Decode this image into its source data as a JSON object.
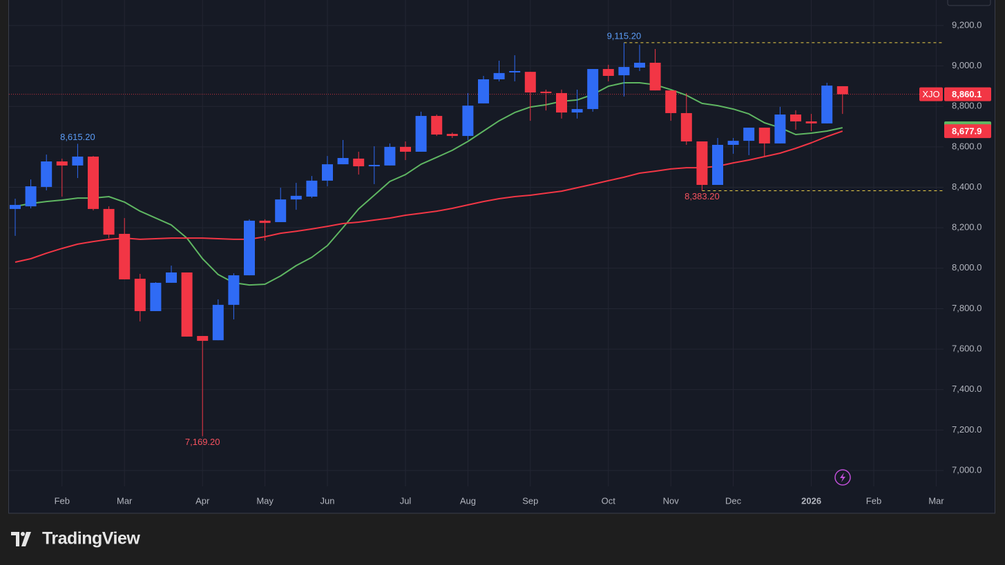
{
  "chart_data": {
    "type": "candlestick",
    "symbol": "XJO",
    "branding": "TradingView",
    "categories": [
      null,
      null,
      null,
      "Feb",
      null,
      null,
      null,
      "Mar",
      null,
      null,
      null,
      null,
      "Apr",
      null,
      null,
      null,
      "May",
      null,
      null,
      null,
      "Jun",
      null,
      null,
      null,
      null,
      "Jul",
      null,
      null,
      null,
      "Aug",
      null,
      null,
      null,
      "Sep",
      null,
      null,
      null,
      null,
      "Oct",
      null,
      null,
      null,
      "Nov",
      null,
      null,
      null,
      "Dec",
      null,
      null,
      null,
      null,
      "2026",
      null,
      null,
      null,
      "Feb",
      null,
      null,
      null,
      "Mar"
    ],
    "open": [
      8293,
      8306,
      8402,
      8528,
      8508,
      8552,
      8293,
      8170,
      7948,
      7788,
      7928,
      7979,
      7665,
      7644,
      7819,
      7965,
      8235,
      8228,
      8340,
      8354,
      8433,
      8514,
      8542,
      8504,
      8508,
      8600,
      8576,
      8753,
      8664,
      8654,
      8815,
      8934,
      8968,
      8971,
      8873,
      8866,
      8770,
      8787,
      8985,
      8954,
      8992,
      9016,
      8879,
      8767,
      8627,
      8412,
      8610,
      8630,
      8695,
      8617,
      8760,
      8726,
      8716,
      8900,
      null,
      null,
      null,
      null,
      null,
      null
    ],
    "high": [
      8344,
      8439,
      8562,
      8542,
      8615.2,
      8555,
      8306,
      8248,
      7972,
      7931,
      8013,
      7979,
      7665,
      7846,
      7975,
      8242,
      8242,
      8398,
      8422,
      8456,
      8555,
      8634,
      8576,
      8603,
      8617,
      8627,
      8774,
      8760,
      8671,
      8866,
      8951,
      9026,
      9053,
      8971,
      8883,
      8883,
      8883,
      8985,
      9006,
      9115.2,
      9105,
      9084,
      8879,
      8866,
      8627,
      8644,
      8644,
      8695,
      8695,
      8798,
      8781,
      8763,
      8917,
      8900,
      null,
      null,
      null,
      null,
      null,
      null
    ],
    "low": [
      8160,
      8296,
      8385,
      8354,
      8446,
      8286,
      8149,
      7945,
      7737,
      7788,
      7928,
      7662,
      7169.2,
      7644,
      7747,
      7965,
      8136,
      8228,
      8289,
      8347,
      8405,
      8514,
      8463,
      8416,
      8508,
      8535,
      8576,
      8654,
      8644,
      8634,
      8815,
      8924,
      8924,
      8729,
      8780,
      8740,
      8740,
      8774,
      8924,
      8849,
      8975,
      8879,
      8729,
      8610,
      8383.2,
      8412,
      8566,
      8559,
      8549,
      8617,
      8685,
      8678,
      8716,
      8763,
      null,
      null,
      null,
      null,
      null,
      null
    ],
    "close": [
      8313,
      8405,
      8528,
      8508,
      8552,
      8293,
      8166,
      7945,
      7788,
      7928,
      7979,
      7662,
      7641,
      7819,
      7965,
      8235,
      8224,
      8340,
      8358,
      8433,
      8514,
      8545,
      8504,
      8511,
      8600,
      8576,
      8753,
      8661,
      8654,
      8804,
      8934,
      8965,
      8975,
      8869,
      8866,
      8770,
      8787,
      8985,
      8951,
      8995,
      9016,
      8879,
      8767,
      8627,
      8412,
      8610,
      8630,
      8695,
      8617,
      8760,
      8726,
      8716,
      8903,
      8860.1,
      null,
      null,
      null,
      null,
      null,
      null
    ],
    "up_color": "#2f6bf5",
    "down_color": "#f23645",
    "series": [
      {
        "color": "#5fb662",
        "values": [
          8306,
          8320,
          8330,
          8337,
          8347,
          8347,
          8354,
          8327,
          8282,
          8248,
          8214,
          8149,
          8047,
          7969,
          7928,
          7917,
          7921,
          7962,
          8013,
          8054,
          8112,
          8201,
          8293,
          8361,
          8429,
          8463,
          8514,
          8548,
          8583,
          8627,
          8678,
          8729,
          8770,
          8797,
          8808,
          8825,
          8832,
          8859,
          8900,
          8917,
          8917,
          8907,
          8883,
          8855,
          8815,
          8804,
          8787,
          8763,
          8719,
          8695,
          8661,
          8668,
          8678,
          8695,
          null,
          null,
          null,
          null,
          null,
          null
        ]
      },
      {
        "color": "#f23645",
        "last_label": "8,677.9",
        "values": [
          8030,
          8047,
          8074,
          8098,
          8119,
          8132,
          8143,
          8149,
          8143,
          8146,
          8149,
          8149,
          8149,
          8146,
          8143,
          8143,
          8156,
          8173,
          8183,
          8194,
          8207,
          8221,
          8228,
          8238,
          8248,
          8262,
          8272,
          8282,
          8296,
          8313,
          8330,
          8344,
          8354,
          8361,
          8371,
          8381,
          8398,
          8415,
          8433,
          8450,
          8470,
          8480,
          8491,
          8497,
          8497,
          8504,
          8521,
          8535,
          8552,
          8569,
          8593,
          8620,
          8651,
          8677.9,
          null,
          null,
          null,
          null,
          null,
          null
        ]
      }
    ],
    "last_price": {
      "value": 8860.1,
      "label": "8,860.1"
    },
    "annotations": [
      {
        "kind": "high",
        "value": 8615.2,
        "label": "8,615.20",
        "dashed": false,
        "color": "#5b9cf6"
      },
      {
        "kind": "high",
        "value": 9115.2,
        "label": "9,115.20",
        "dashed": true,
        "color": "#5b9cf6"
      },
      {
        "kind": "low",
        "value": 7169.2,
        "label": "7,169.20",
        "dashed": false,
        "color": "#f7525f"
      },
      {
        "kind": "low",
        "value": 8383.2,
        "label": "8,383.20",
        "dashed": true,
        "color": "#f7525f"
      }
    ],
    "ylim": [
      6921.5,
      9326.2
    ],
    "yticks": [
      {
        "value": 7000,
        "label": "7,000.0"
      },
      {
        "value": 7200,
        "label": "7,200.0"
      },
      {
        "value": 7400,
        "label": "7,400.0"
      },
      {
        "value": 7600,
        "label": "7,600.0"
      },
      {
        "value": 7800,
        "label": "7,800.0"
      },
      {
        "value": 8000,
        "label": "8,000.0"
      },
      {
        "value": 8200,
        "label": "8,200.0"
      },
      {
        "value": 8400,
        "label": "8,400.0"
      },
      {
        "value": 8600,
        "label": "8,600.0"
      },
      {
        "value": 8800,
        "label": "8,800.0"
      },
      {
        "value": 9000,
        "label": "9,000.0"
      },
      {
        "value": 9200,
        "label": "9,200.0"
      }
    ],
    "grid": true
  }
}
